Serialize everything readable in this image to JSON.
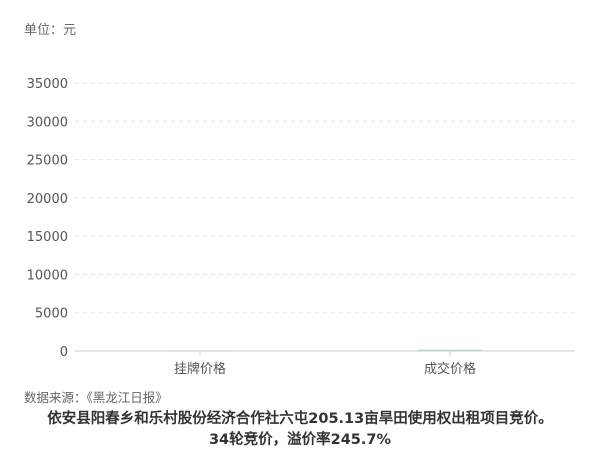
{
  "chart_data": {
    "type": "bar",
    "unit_label": "单位：元",
    "categories": [
      "挂牌价格",
      "成交价格"
    ],
    "values": [
      50,
      172.85
    ],
    "ylim": [
      0,
      35000
    ],
    "yticks": [
      0,
      5000,
      10000,
      15000,
      20000,
      25000,
      30000,
      35000
    ],
    "grid": true,
    "bar_color": "#b8d4d8",
    "source": "数据来源：《黑龙江日报》",
    "caption_line1": "依安县阳春乡和乐村股份经济合作社六屯205.13亩旱田使用权出租项目竞价。",
    "caption_line2": "34轮竞价，溢价率245.7%"
  }
}
